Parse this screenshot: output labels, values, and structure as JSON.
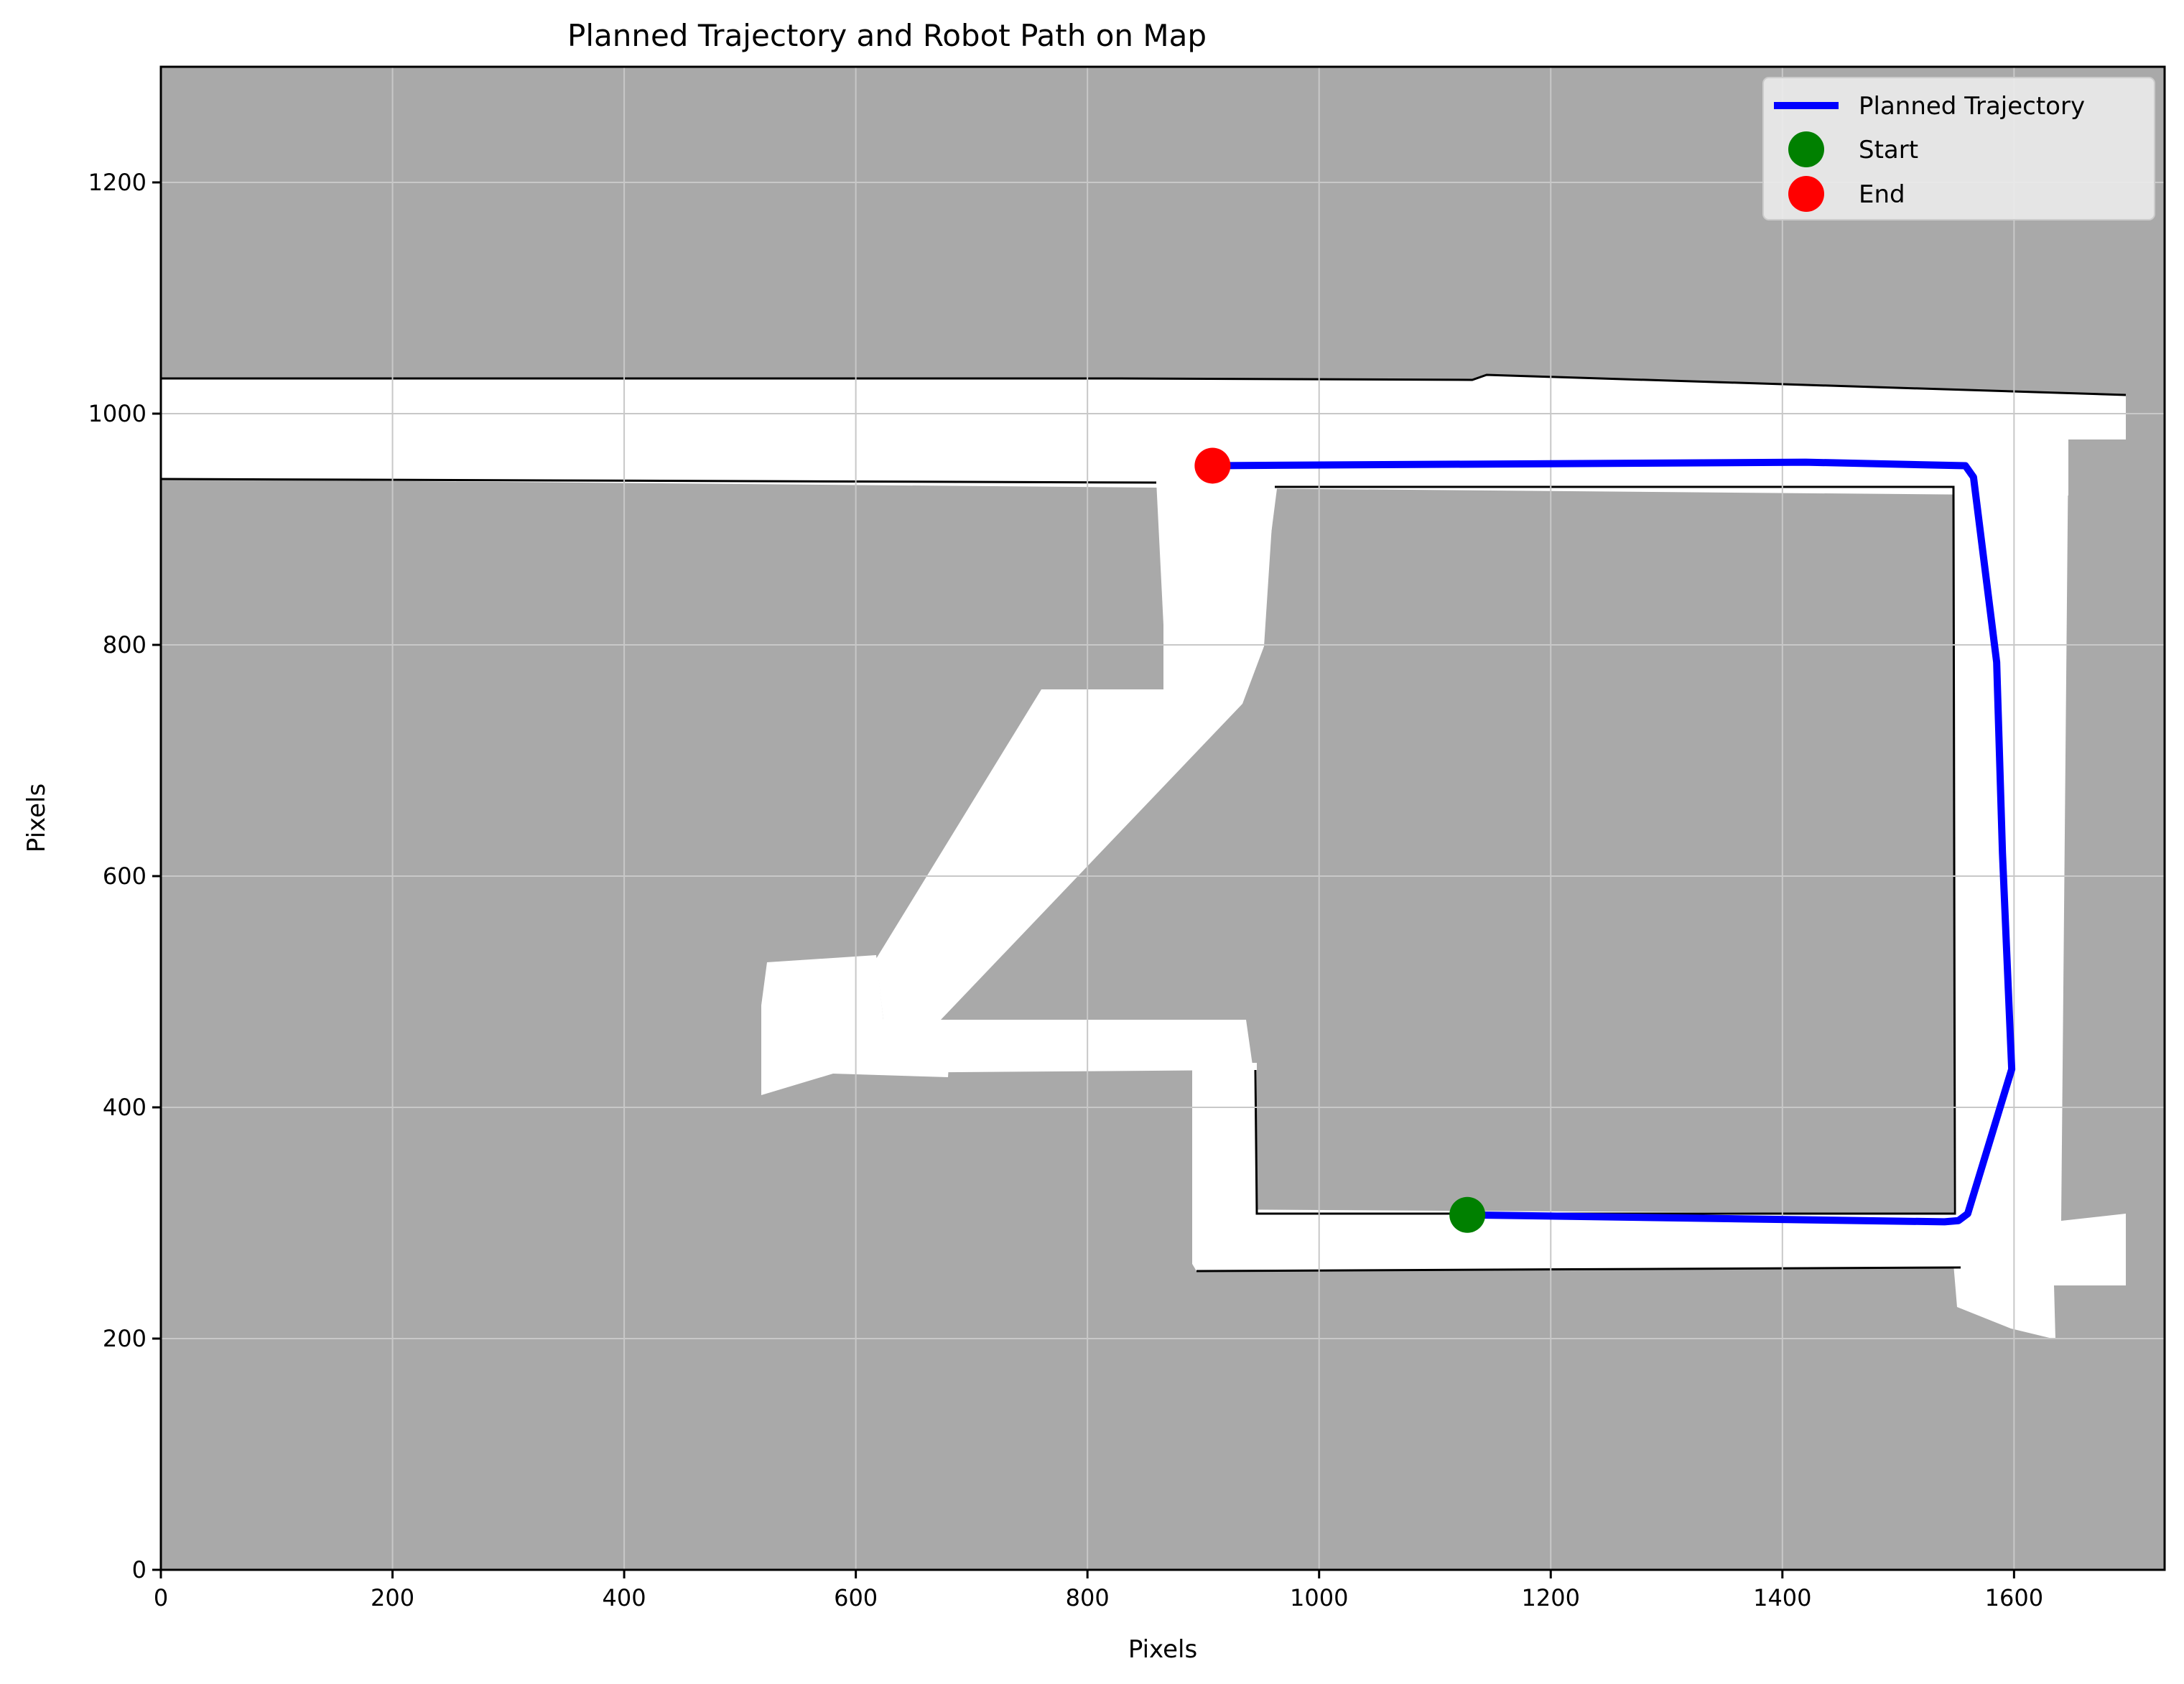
{
  "chart_data": {
    "type": "line",
    "title": "Planned Trajectory and Robot Path on Map",
    "xlabel": "Pixels",
    "ylabel": "Pixels",
    "xlim": [
      0,
      1730
    ],
    "ylim": [
      0,
      1300
    ],
    "x_ticks": [
      0,
      200,
      400,
      600,
      800,
      1000,
      1200,
      1400,
      1600
    ],
    "y_ticks": [
      0,
      200,
      400,
      600,
      800,
      1000,
      1200
    ],
    "grid": true,
    "legend_position": "top-right",
    "colors": {
      "background": "#a9a9a9",
      "free_space": "#ffffff",
      "walls": "#000000",
      "trajectory": "#0000ff",
      "start": "#008000",
      "end": "#ff0000",
      "grid": "#c8c8c8"
    },
    "series": [
      {
        "name": "Planned Trajectory",
        "x": [
          1128,
          1540,
          1552,
          1560,
          1598,
          1590,
          1585,
          1565,
          1558,
          1420,
          908
        ],
        "y": [
          307,
          301,
          302,
          308,
          433,
          620,
          785,
          945,
          955,
          958,
          955
        ]
      }
    ],
    "points": [
      {
        "name": "Start",
        "x": 1128,
        "y": 307
      },
      {
        "name": "End",
        "x": 908,
        "y": 955
      }
    ],
    "legend": [
      "Planned Trajectory",
      "Start",
      "End"
    ]
  }
}
